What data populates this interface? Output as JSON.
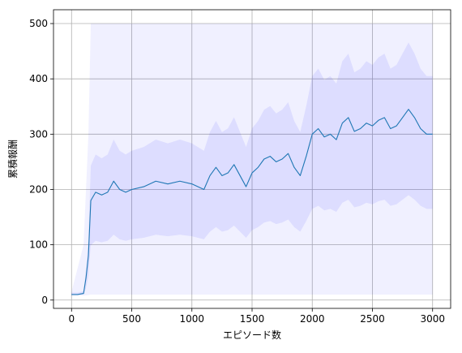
{
  "chart_data": {
    "type": "line",
    "title": "",
    "xlabel": "エピソード数",
    "ylabel": "累積報酬",
    "xlim": [
      -150,
      3150
    ],
    "ylim": [
      -15,
      525
    ],
    "xticks": [
      0,
      500,
      1000,
      1500,
      2000,
      2500,
      3000
    ],
    "yticks": [
      0,
      100,
      200,
      300,
      400,
      500
    ],
    "grid": true,
    "legend": "none",
    "colors": {
      "mean_line": "#1f77b4",
      "band": "#0000ff",
      "grid": "#b0b0b0"
    },
    "series": [
      {
        "style": "mean line",
        "x": [
          0,
          50,
          100,
          120,
          140,
          160,
          200,
          250,
          300,
          350,
          400,
          450,
          500,
          600,
          700,
          800,
          900,
          1000,
          1100,
          1150,
          1200,
          1250,
          1300,
          1350,
          1400,
          1450,
          1500,
          1550,
          1600,
          1650,
          1700,
          1750,
          1800,
          1850,
          1900,
          1950,
          2000,
          2050,
          2100,
          2150,
          2200,
          2250,
          2300,
          2350,
          2400,
          2450,
          2500,
          2550,
          2600,
          2650,
          2700,
          2750,
          2800,
          2850,
          2900,
          2950,
          3000
        ],
        "y": [
          10,
          10,
          12,
          40,
          80,
          180,
          195,
          190,
          195,
          215,
          200,
          195,
          200,
          205,
          215,
          210,
          215,
          210,
          200,
          225,
          240,
          225,
          230,
          245,
          225,
          205,
          230,
          240,
          255,
          260,
          250,
          255,
          265,
          240,
          225,
          260,
          300,
          310,
          295,
          300,
          290,
          320,
          330,
          305,
          310,
          320,
          315,
          325,
          330,
          310,
          315,
          330,
          345,
          330,
          310,
          300,
          300
        ]
      },
      {
        "style": "shaded min–max range",
        "x": [
          0,
          100,
          140,
          160,
          300,
          1000,
          2000,
          3000
        ],
        "upper": [
          15,
          100,
          300,
          500,
          500,
          500,
          500,
          500
        ],
        "lower": [
          8,
          8,
          9,
          10,
          10,
          10,
          10,
          10
        ]
      }
    ]
  }
}
